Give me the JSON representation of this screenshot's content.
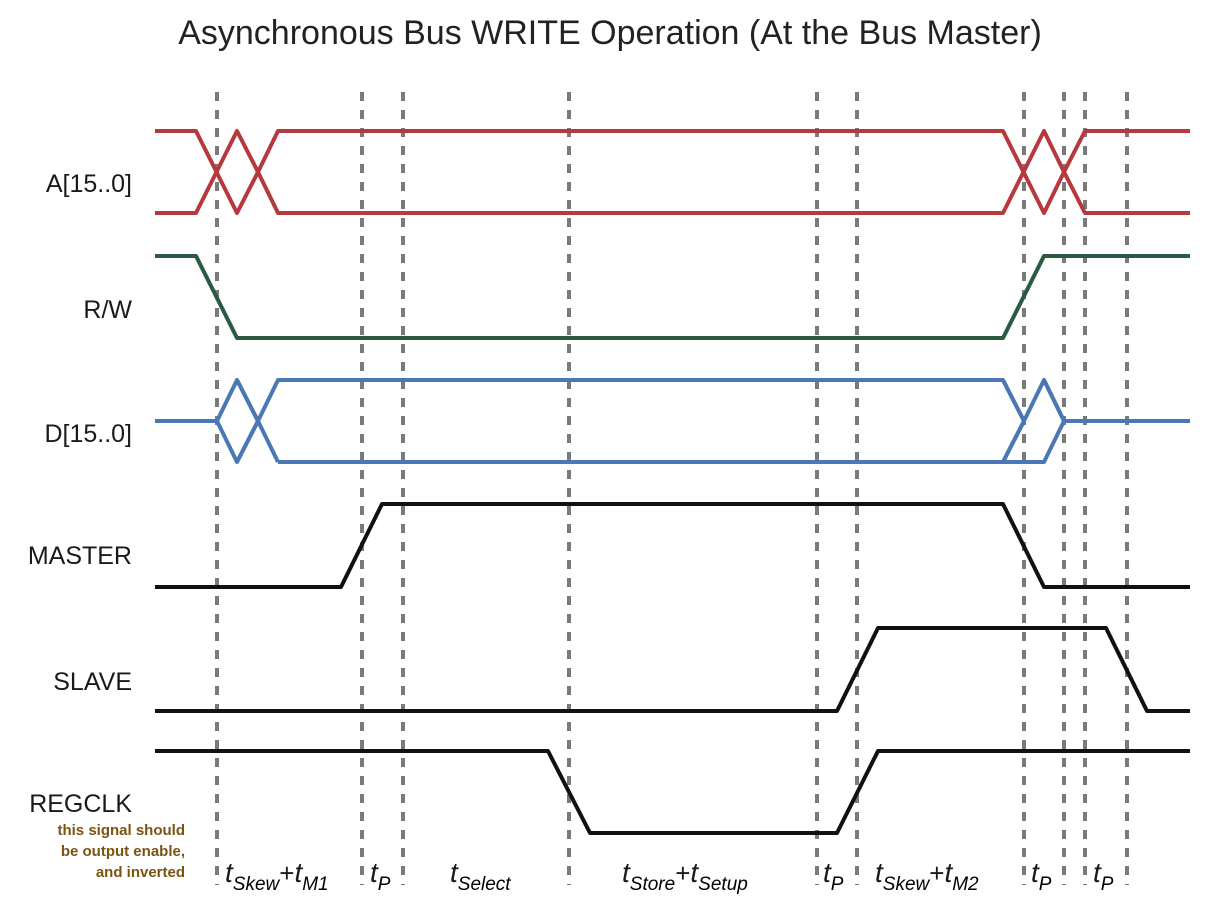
{
  "title": "Asynchronous Bus WRITE Operation (At the Bus Master)",
  "signals": {
    "address": "A[15..0]",
    "rw": "R/W",
    "data": "D[15..0]",
    "master": "MASTER",
    "slave": "SLAVE",
    "regclk": "REGCLK"
  },
  "note": {
    "line1": "this signal should",
    "line2": "be output enable,",
    "line3": "and inverted"
  },
  "timing": {
    "skew_m1": {
      "t": "t",
      "sub1": "Skew",
      "plus": "+",
      "t2": "t",
      "sub2": "M1"
    },
    "tp1": {
      "t": "t",
      "sub": "P"
    },
    "select": {
      "t": "t",
      "sub": "Select"
    },
    "store_setup": {
      "t": "t",
      "sub1": "Store",
      "plus": "+",
      "t2": "t",
      "sub2": "Setup"
    },
    "tp2": {
      "t": "t",
      "sub": "P"
    },
    "skew_m2": {
      "t": "t",
      "sub1": "Skew",
      "plus": "+",
      "t2": "t",
      "sub2": "M2"
    },
    "tp3": {
      "t": "t",
      "sub": "P"
    },
    "tp4": {
      "t": "t",
      "sub": "P"
    }
  },
  "colors": {
    "address": "#b5393d",
    "rw": "#2a5a40",
    "data": "#4a78b4",
    "digital": "#111111",
    "guides": "#7a7a7a"
  }
}
